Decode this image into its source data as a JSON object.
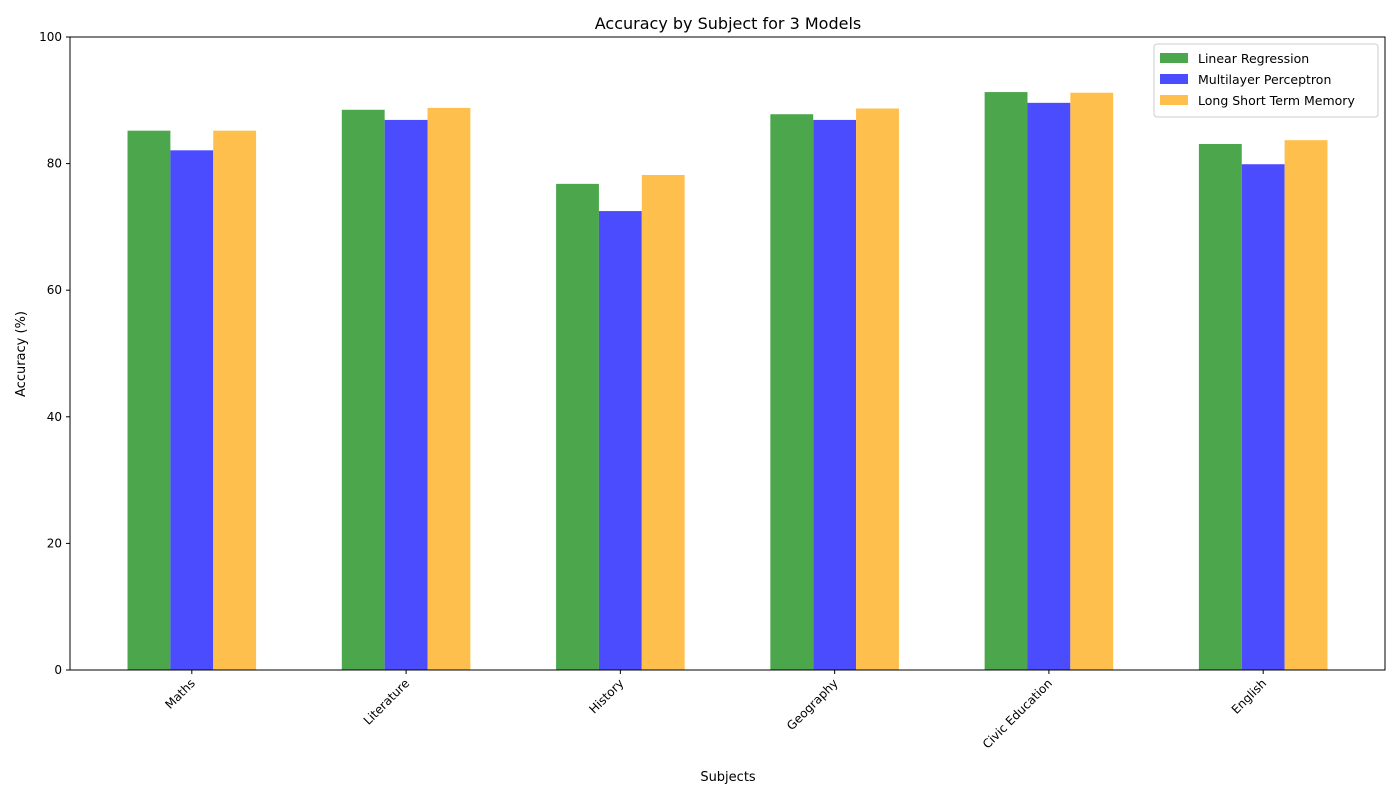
{
  "chart_data": {
    "type": "bar",
    "title": "Accuracy by Subject for 3 Models",
    "xlabel": "Subjects",
    "ylabel": "Accuracy (%)",
    "ylim": [
      0,
      100
    ],
    "yticks": [
      0,
      20,
      40,
      60,
      80,
      100
    ],
    "grid": false,
    "legend_position": "top-right",
    "categories": [
      "Maths",
      "Literature",
      "History",
      "Geography",
      "Civic Education",
      "English"
    ],
    "series": [
      {
        "name": "Linear Regression",
        "color": "#4ca64c",
        "values": [
          85.2,
          88.5,
          76.8,
          87.8,
          91.3,
          83.1
        ]
      },
      {
        "name": "Multilayer Perceptron",
        "color": "#4c4cff",
        "values": [
          82.1,
          86.9,
          72.5,
          86.9,
          89.6,
          79.9
        ]
      },
      {
        "name": "Long Short Term Memory",
        "color": "#ffbf4c",
        "values": [
          85.2,
          88.8,
          78.2,
          88.7,
          91.2,
          83.7
        ]
      }
    ]
  }
}
